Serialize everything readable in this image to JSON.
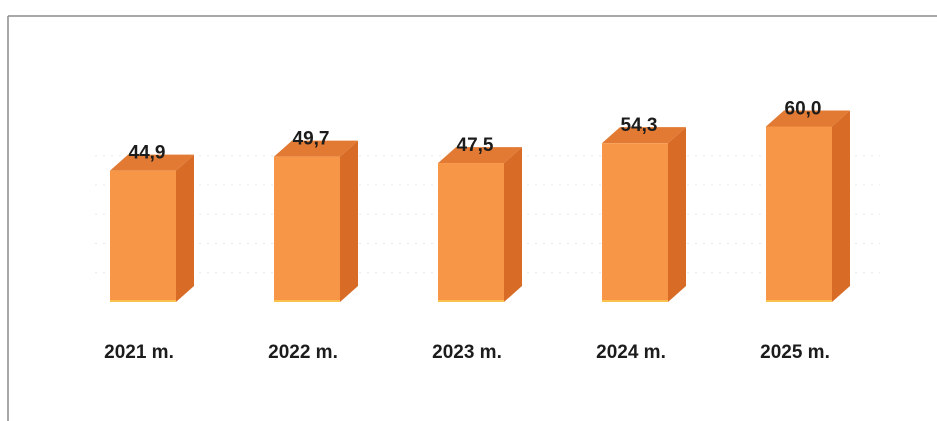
{
  "chart_data": {
    "type": "bar",
    "style": "3d-column",
    "categories": [
      "2021 m.",
      "2022 m.",
      "2023 m.",
      "2024 m.",
      "2025 m."
    ],
    "values": [
      44.9,
      49.7,
      47.5,
      54.3,
      60.0
    ],
    "value_labels": [
      "44,9",
      "49,7",
      "47,5",
      "54,3",
      "60,0"
    ],
    "title": "",
    "xlabel": "",
    "ylabel": "",
    "ylim": [
      0,
      62
    ],
    "grid": true,
    "legend": "none",
    "colors": {
      "front": "#f79646",
      "side": "#d86c26",
      "top": "#e27a33",
      "bottom_edge": "#fac24c",
      "grid": "#d9d9d9",
      "frame": "#8c8c8c"
    }
  }
}
